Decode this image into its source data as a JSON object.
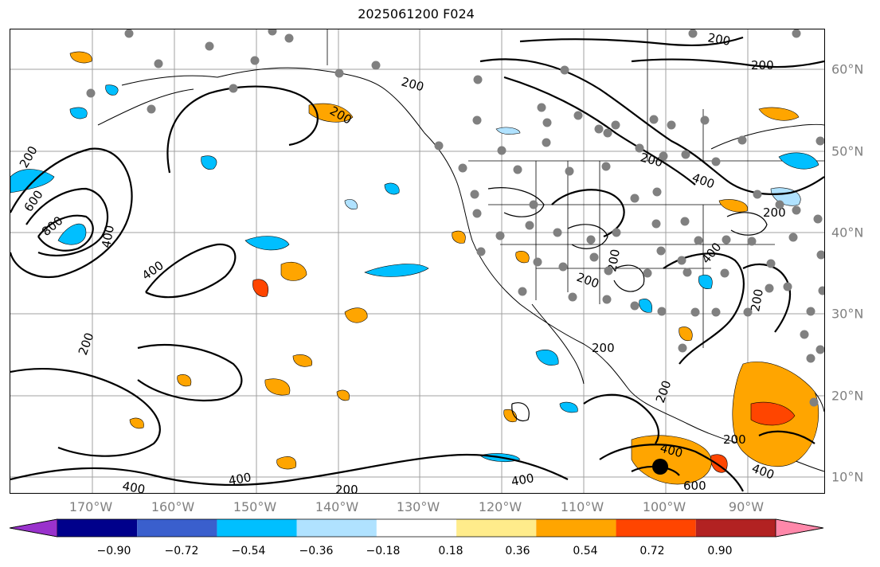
{
  "title": "2025061200 F024",
  "longitude_labels": [
    "170°W",
    "160°W",
    "150°W",
    "140°W",
    "130°W",
    "120°W",
    "110°W",
    "100°W",
    "90°W"
  ],
  "latitude_labels": [
    "60°N",
    "50°N",
    "40°N",
    "30°N",
    "20°N",
    "10°N"
  ],
  "contour_labels": [
    "200",
    "400",
    "600",
    "800"
  ],
  "colorbar": {
    "ticks": [
      "−0.90",
      "−0.72",
      "−0.54",
      "−0.36",
      "−0.18",
      "0.18",
      "0.36",
      "0.54",
      "0.72",
      "0.90"
    ],
    "colors": [
      "#9932cc",
      "#00008b",
      "#3a5fcd",
      "#00bfff",
      "#b0e2ff",
      "#ffffff",
      "#ffec8b",
      "#ffa500",
      "#ff4500",
      "#b22222",
      "#ff88aa"
    ]
  }
}
